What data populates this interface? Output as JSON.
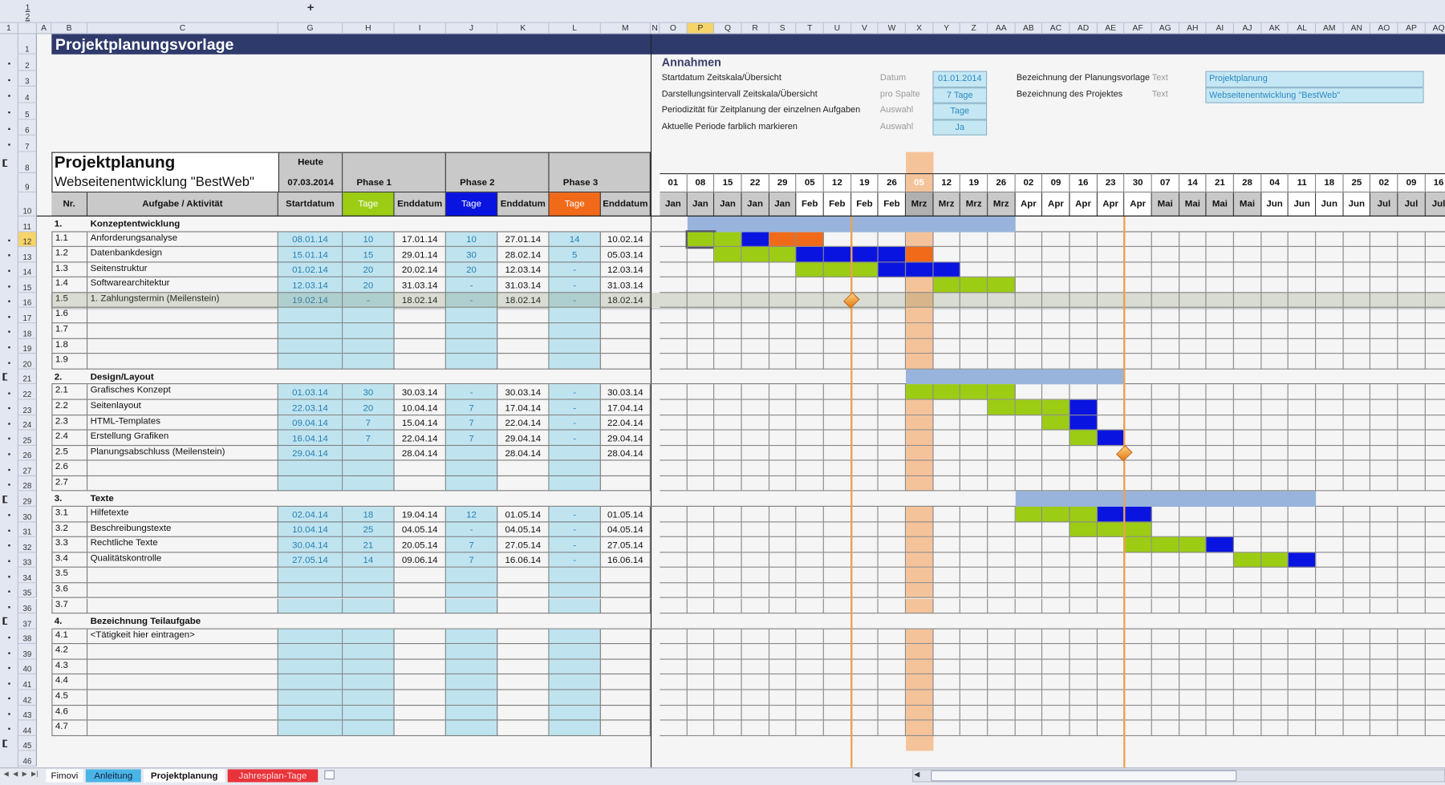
{
  "sheet": {
    "outline_levels": [
      "1",
      "2"
    ],
    "expand_symbol": "+",
    "columns_left": [
      "A",
      "B",
      "C",
      "G",
      "H",
      "I",
      "J",
      "K",
      "L",
      "M",
      "N"
    ],
    "columns_right": [
      "O",
      "P",
      "Q",
      "R",
      "S",
      "T",
      "U",
      "V",
      "W",
      "X",
      "Y",
      "Z",
      "AA",
      "AB",
      "AC",
      "AD",
      "AE",
      "AF",
      "AG",
      "AH",
      "AI",
      "AJ",
      "AK",
      "AL",
      "AM",
      "AN",
      "AO",
      "AP",
      "AQ"
    ],
    "selected_column": "P",
    "selected_row": 12,
    "row_count": 46
  },
  "title": "Projektplanungsvorlage",
  "annahmen": {
    "heading": "Annahmen",
    "rows": [
      {
        "label": "Startdatum Zeitskala/Übersicht",
        "type": "Datum",
        "value": "01.01.2014"
      },
      {
        "label": "Darstellungsintervall Zeitskala/Übersicht",
        "type": "pro Spalte",
        "value": "7 Tage"
      },
      {
        "label": "Periodizität für Zeitplanung der einzelnen Aufgaben",
        "type": "Auswahl",
        "value": "Tage"
      },
      {
        "label": "Aktuelle Periode farblich markieren",
        "type": "Auswahl",
        "value": "Ja"
      }
    ],
    "rows2": [
      {
        "label": "Bezeichnung der Planungsvorlage",
        "type": "Text",
        "value": "Projektplanung"
      },
      {
        "label": "Bezeichnung des Projektes",
        "type": "Text",
        "value": "Webseitenentwicklung \"BestWeb\""
      }
    ]
  },
  "header": {
    "title": "Projektplanung",
    "subtitle": "Webseitenentwicklung \"BestWeb\"",
    "today_label": "Heute",
    "today": "07.03.2014",
    "phases": [
      "Phase 1",
      "Phase 2",
      "Phase 3"
    ],
    "cols": [
      "Nr.",
      "Aufgabe / Aktivität",
      "Startdatum",
      "Tage",
      "Enddatum",
      "Tage",
      "Enddatum",
      "Tage",
      "Enddatum"
    ]
  },
  "timeline": {
    "days": [
      "01",
      "08",
      "15",
      "22",
      "29",
      "05",
      "12",
      "19",
      "26",
      "05",
      "12",
      "19",
      "26",
      "02",
      "09",
      "16",
      "23",
      "30",
      "07",
      "14",
      "21",
      "28",
      "04",
      "11",
      "18",
      "25",
      "02",
      "09",
      "16"
    ],
    "months": [
      "Jan",
      "Jan",
      "Jan",
      "Jan",
      "Jan",
      "Feb",
      "Feb",
      "Feb",
      "Feb",
      "Mrz",
      "Mrz",
      "Mrz",
      "Mrz",
      "Apr",
      "Apr",
      "Apr",
      "Apr",
      "Apr",
      "Mai",
      "Mai",
      "Mai",
      "Mai",
      "Jun",
      "Jun",
      "Jun",
      "Jun",
      "Jul",
      "Jul",
      "Jul"
    ],
    "shaded_months": [
      "Jan",
      "Mrz",
      "Mai",
      "Jul"
    ],
    "today_week": 9
  },
  "groups": [
    {
      "row": 11,
      "nr": "1.",
      "name": "Konzeptentwicklung",
      "summary_weeks": [
        1,
        12
      ],
      "tasks": [
        {
          "nr": "1.1",
          "name": "Anforderungsanalyse",
          "start": "08.01.14",
          "t1": "10",
          "e1": "17.01.14",
          "t2": "10",
          "e2": "27.01.14",
          "t3": "14",
          "e3": "10.02.14",
          "green": [
            1,
            2
          ],
          "blue": [
            3
          ],
          "orange": [
            4,
            5
          ]
        },
        {
          "nr": "1.2",
          "name": "Datenbankdesign",
          "start": "15.01.14",
          "t1": "15",
          "e1": "29.01.14",
          "t2": "30",
          "e2": "28.02.14",
          "t3": "5",
          "e3": "05.03.14",
          "green": [
            2,
            3,
            4
          ],
          "blue": [
            5,
            6,
            7,
            8
          ],
          "orange": [
            9
          ]
        },
        {
          "nr": "1.3",
          "name": "Seitenstruktur",
          "start": "01.02.14",
          "t1": "20",
          "e1": "20.02.14",
          "t2": "20",
          "e2": "12.03.14",
          "t3": "-",
          "e3": "12.03.14",
          "green": [
            5,
            6,
            7
          ],
          "blue": [
            8,
            9,
            10
          ],
          "orange": []
        },
        {
          "nr": "1.4",
          "name": "Softwarearchitektur",
          "start": "12.03.14",
          "t1": "20",
          "e1": "31.03.14",
          "t2": "-",
          "e2": "31.03.14",
          "t3": "-",
          "e3": "31.03.14",
          "green": [
            10,
            11,
            12
          ],
          "blue": [],
          "orange": []
        },
        {
          "nr": "1.5",
          "name": "1. Zahlungstermin (Meilenstein)",
          "start": "19.02.14",
          "t1": "-",
          "e1": "18.02.14",
          "t2": "-",
          "e2": "18.02.14",
          "t3": "-",
          "e3": "18.02.14",
          "milestone_week": 7,
          "highlighted": true
        },
        {
          "nr": "1.6",
          "name": ""
        },
        {
          "nr": "1.7",
          "name": ""
        },
        {
          "nr": "1.8",
          "name": ""
        },
        {
          "nr": "1.9",
          "name": ""
        }
      ]
    },
    {
      "row": 21,
      "nr": "2.",
      "name": "Design/Layout",
      "summary_weeks": [
        9,
        16
      ],
      "tasks": [
        {
          "nr": "2.1",
          "name": "Grafisches Konzept",
          "start": "01.03.14",
          "t1": "30",
          "e1": "30.03.14",
          "t2": "-",
          "e2": "30.03.14",
          "t3": "-",
          "e3": "30.03.14",
          "green": [
            9,
            10,
            11,
            12
          ],
          "blue": [],
          "orange": []
        },
        {
          "nr": "2.2",
          "name": "Seitenlayout",
          "start": "22.03.14",
          "t1": "20",
          "e1": "10.04.14",
          "t2": "7",
          "e2": "17.04.14",
          "t3": "-",
          "e3": "17.04.14",
          "green": [
            12,
            13,
            14
          ],
          "blue": [
            15
          ],
          "orange": []
        },
        {
          "nr": "2.3",
          "name": "HTML-Templates",
          "start": "09.04.14",
          "t1": "7",
          "e1": "15.04.14",
          "t2": "7",
          "e2": "22.04.14",
          "t3": "-",
          "e3": "22.04.14",
          "green": [
            14
          ],
          "blue": [
            15
          ],
          "orange": []
        },
        {
          "nr": "2.4",
          "name": "Erstellung Grafiken",
          "start": "16.04.14",
          "t1": "7",
          "e1": "22.04.14",
          "t2": "7",
          "e2": "29.04.14",
          "t3": "-",
          "e3": "29.04.14",
          "green": [
            15
          ],
          "blue": [
            16
          ],
          "orange": []
        },
        {
          "nr": "2.5",
          "name": "Planungsabschluss (Meilenstein)",
          "start": "29.04.14",
          "t1": "",
          "e1": "28.04.14",
          "t2": "",
          "e2": "28.04.14",
          "t3": "",
          "e3": "28.04.14",
          "milestone_week": 17
        },
        {
          "nr": "2.6",
          "name": ""
        },
        {
          "nr": "2.7",
          "name": ""
        }
      ]
    },
    {
      "row": 29,
      "nr": "3.",
      "name": "Texte",
      "summary_weeks": [
        13,
        23
      ],
      "tasks": [
        {
          "nr": "3.1",
          "name": "Hilfetexte",
          "start": "02.04.14",
          "t1": "18",
          "e1": "19.04.14",
          "t2": "12",
          "e2": "01.05.14",
          "t3": "-",
          "e3": "01.05.14",
          "green": [
            13,
            14,
            15
          ],
          "blue": [
            16,
            17
          ],
          "orange": []
        },
        {
          "nr": "3.2",
          "name": "Beschreibungstexte",
          "start": "10.04.14",
          "t1": "25",
          "e1": "04.05.14",
          "t2": "-",
          "e2": "04.05.14",
          "t3": "-",
          "e3": "04.05.14",
          "green": [
            15,
            16,
            17
          ],
          "blue": [],
          "orange": []
        },
        {
          "nr": "3.3",
          "name": "Rechtliche Texte",
          "start": "30.04.14",
          "t1": "21",
          "e1": "20.05.14",
          "t2": "7",
          "e2": "27.05.14",
          "t3": "-",
          "e3": "27.05.14",
          "green": [
            17,
            18,
            19
          ],
          "blue": [
            20
          ],
          "orange": []
        },
        {
          "nr": "3.4",
          "name": "Qualitätskontrolle",
          "start": "27.05.14",
          "t1": "14",
          "e1": "09.06.14",
          "t2": "7",
          "e2": "16.06.14",
          "t3": "-",
          "e3": "16.06.14",
          "green": [
            21,
            22
          ],
          "blue": [
            23
          ],
          "orange": []
        },
        {
          "nr": "3.5",
          "name": ""
        },
        {
          "nr": "3.6",
          "name": ""
        },
        {
          "nr": "3.7",
          "name": ""
        }
      ]
    },
    {
      "row": 37,
      "nr": "4.",
      "name": "Bezeichnung Teilaufgabe",
      "tasks": [
        {
          "nr": "4.1",
          "name": "<Tätigkeit hier eintragen>"
        },
        {
          "nr": "4.2",
          "name": ""
        },
        {
          "nr": "4.3",
          "name": ""
        },
        {
          "nr": "4.4",
          "name": ""
        },
        {
          "nr": "4.5",
          "name": ""
        },
        {
          "nr": "4.6",
          "name": ""
        },
        {
          "nr": "4.7",
          "name": ""
        }
      ]
    }
  ],
  "sheet_tabs": [
    {
      "label": "Fimovi",
      "color": "#ffffff",
      "active": false
    },
    {
      "label": "Anleitung",
      "color": "#4ab4e6",
      "active": false
    },
    {
      "label": "Projektplanung",
      "color": "#ffffff",
      "active": true
    },
    {
      "label": "Jahresplan-Tage",
      "color": "#e8333a",
      "active": false
    }
  ],
  "colors": {
    "title_bar": "#2f3a6c",
    "phase1": "#9ccc14",
    "phase2": "#0a14e0",
    "phase3": "#f06a1a",
    "summary": "#98b4dc",
    "today": "#f5c39a",
    "milestone": "#f0a050",
    "input": "#bfe4f0"
  }
}
